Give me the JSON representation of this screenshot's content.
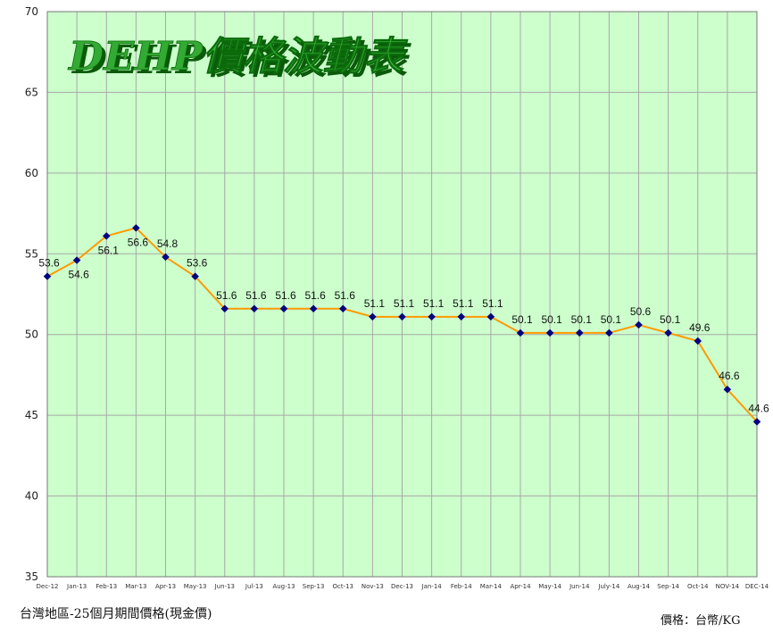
{
  "chart_data": {
    "type": "line",
    "title": "DEHP價格波動表",
    "xlabel": "",
    "ylabel": "",
    "ylim": [
      35,
      70
    ],
    "y_ticks": [
      35,
      40,
      45,
      50,
      55,
      60,
      65,
      70
    ],
    "grid": true,
    "categories": [
      "Dec-12",
      "Jan-13",
      "Feb-13",
      "Mar-13",
      "Apr-13",
      "May-13",
      "Jun-13",
      "Jul-13",
      "Aug-13",
      "Sep-13",
      "Oct-13",
      "Nov-13",
      "Dec-13",
      "Jan-14",
      "Feb-14",
      "Mar-14",
      "Apr-14",
      "May-14",
      "Jun-14",
      "July-14",
      "Aug-14",
      "Sep-14",
      "Oct-14",
      "NOV-14",
      "DEC-14"
    ],
    "series": [
      {
        "values": [
          53.6,
          54.6,
          56.1,
          56.6,
          54.8,
          53.6,
          51.6,
          51.6,
          51.6,
          51.6,
          51.6,
          51.1,
          51.1,
          51.1,
          51.1,
          51.1,
          50.1,
          50.1,
          50.1,
          50.1,
          50.6,
          50.1,
          49.6,
          46.6,
          44.6
        ],
        "labels": [
          "53.6",
          "54.6",
          "56.1",
          "56.6",
          "54.8",
          "53.6",
          "51.6",
          "51.6",
          "51.6",
          "51.6",
          "51.6",
          "51.1",
          "51.1",
          "51.1",
          "51.1",
          "51.1",
          "50.1",
          "50.1",
          "50.1",
          "50.1",
          "50.6",
          "50.1",
          "49.6",
          "46.6",
          "44.6"
        ]
      }
    ],
    "colors": {
      "plot_bg": "#ccffcc",
      "grid": "#a8a8a8",
      "line": "#ff9900",
      "marker": "#000080",
      "title_fill": "#33aa33",
      "title_shadow": "#0a5a0a"
    }
  },
  "footer": {
    "left": "台灣地區-25個月期間價格(現金價)",
    "right": "價格：台幣/KG"
  }
}
